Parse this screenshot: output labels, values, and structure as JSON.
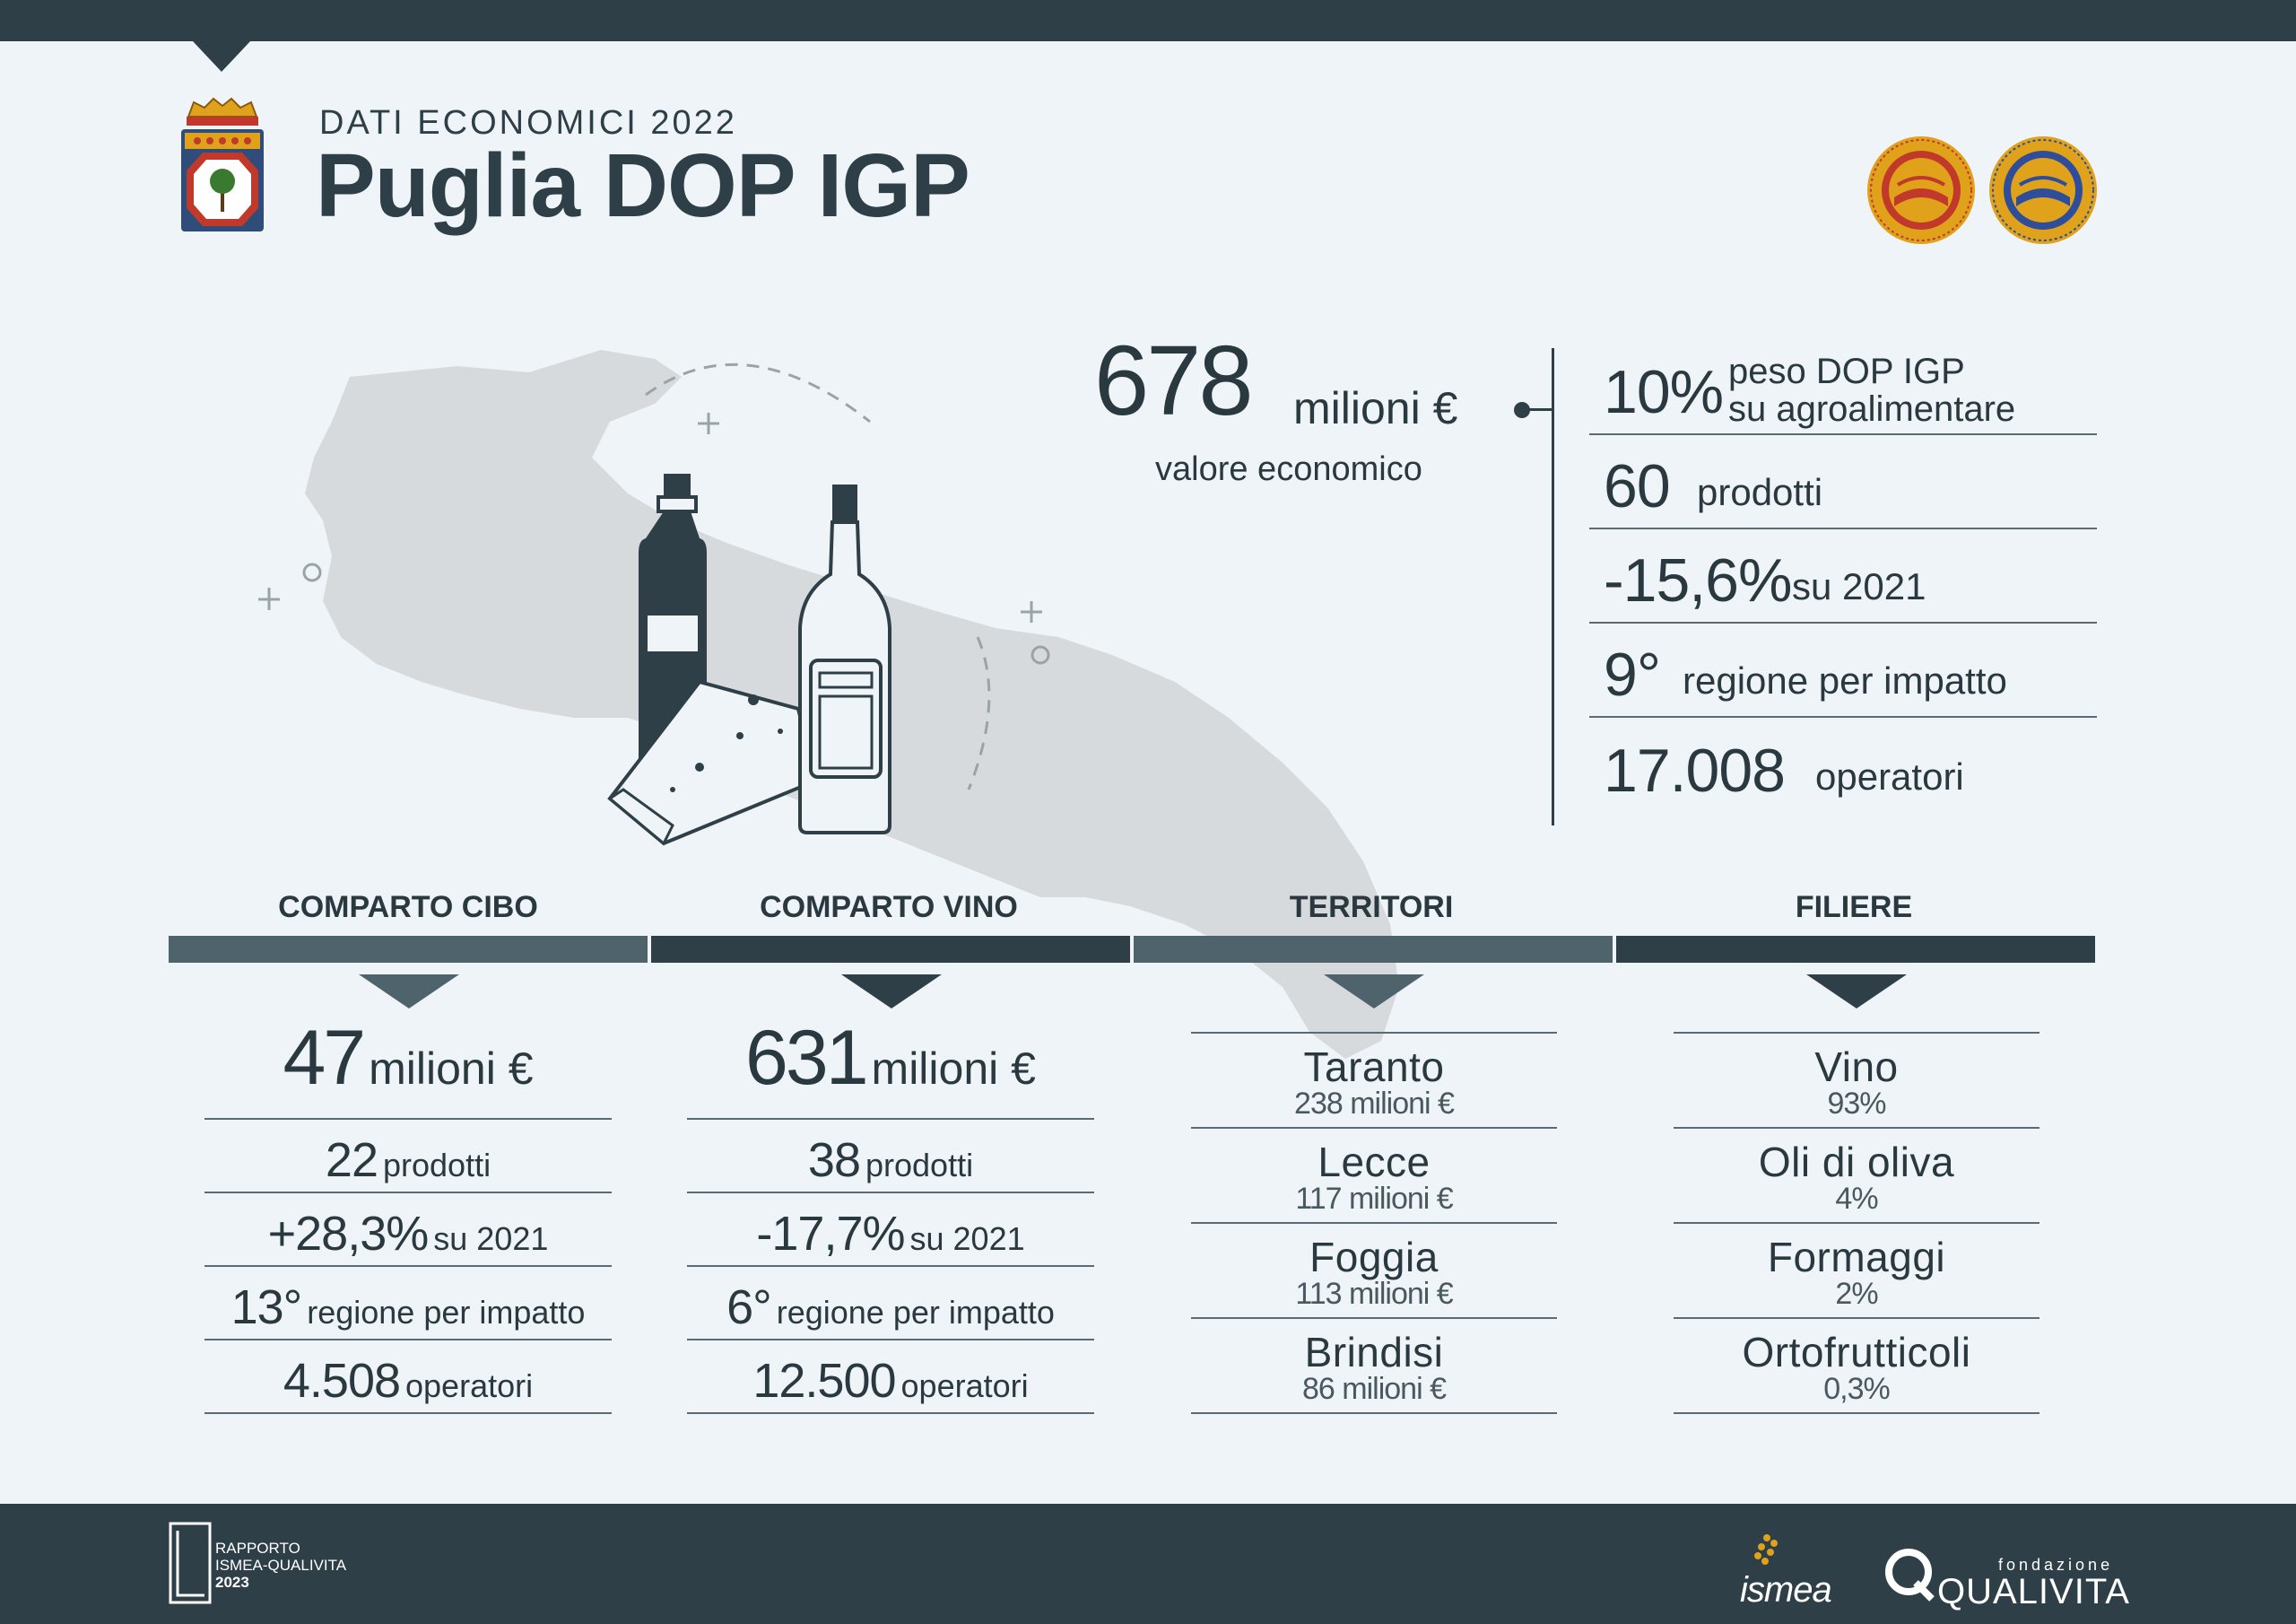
{
  "header": {
    "subtitle": "DATI ECONOMICI 2022",
    "title": "Puglia DOP IGP"
  },
  "hero": {
    "value": "678",
    "unit": "milioni €",
    "label": "valore economico"
  },
  "stats": [
    {
      "big": "10%",
      "small": "peso DOP IGP",
      "small2": "su agroalimentare"
    },
    {
      "big": "60",
      "small": "prodotti"
    },
    {
      "big": "-15,6%",
      "small": "su 2021"
    },
    {
      "big": "9°",
      "small": "regione per impatto"
    },
    {
      "big": "17.008",
      "small": "operatori"
    }
  ],
  "sections": {
    "cibo": "COMPARTO CIBO",
    "vino": "COMPARTO VINO",
    "territori": "TERRITORI",
    "filiere": "FILIERE"
  },
  "cibo": {
    "value": "47",
    "unit": "milioni €",
    "rows": [
      {
        "b": "22",
        "s": "prodotti"
      },
      {
        "b": "+28,3%",
        "s": "su 2021"
      },
      {
        "b": "13°",
        "s": "regione per impatto"
      },
      {
        "b": "4.508",
        "s": "operatori"
      }
    ]
  },
  "vino": {
    "value": "631",
    "unit": "milioni €",
    "rows": [
      {
        "b": "38",
        "s": "prodotti"
      },
      {
        "b": "-17,7%",
        "s": "su 2021"
      },
      {
        "b": "6°",
        "s": "regione per impatto"
      },
      {
        "b": "12.500",
        "s": "operatori"
      }
    ]
  },
  "territori": [
    {
      "name": "Taranto",
      "val": "238 milioni €"
    },
    {
      "name": "Lecce",
      "val": "117 milioni €"
    },
    {
      "name": "Foggia",
      "val": "113 milioni €"
    },
    {
      "name": "Brindisi",
      "val": "86 milioni €"
    }
  ],
  "filiere": [
    {
      "name": "Vino",
      "val": "93%"
    },
    {
      "name": "Oli di oliva",
      "val": "4%"
    },
    {
      "name": "Formaggi",
      "val": "2%"
    },
    {
      "name": "Ortofrutticoli",
      "val": "0,3%"
    }
  ],
  "footer": {
    "rapporto_line1": "RAPPORTO",
    "rapporto_line2": "ISMEA-QUALIVITA",
    "rapporto_year": "2023",
    "ismea": "ismea",
    "fondazione": "fondazione",
    "qualivita": "QUALIVITA"
  },
  "colors": {
    "dark": "#2e3f48",
    "bar_light": "#4f636d",
    "background": "#eef4f7",
    "map": "#d6dadd"
  },
  "icons": [
    "regional-crest-icon",
    "dop-seal-icon",
    "igp-seal-icon",
    "oil-bottle-icon",
    "wine-bottle-icon",
    "cheese-icon",
    "puglia-map-icon"
  ]
}
